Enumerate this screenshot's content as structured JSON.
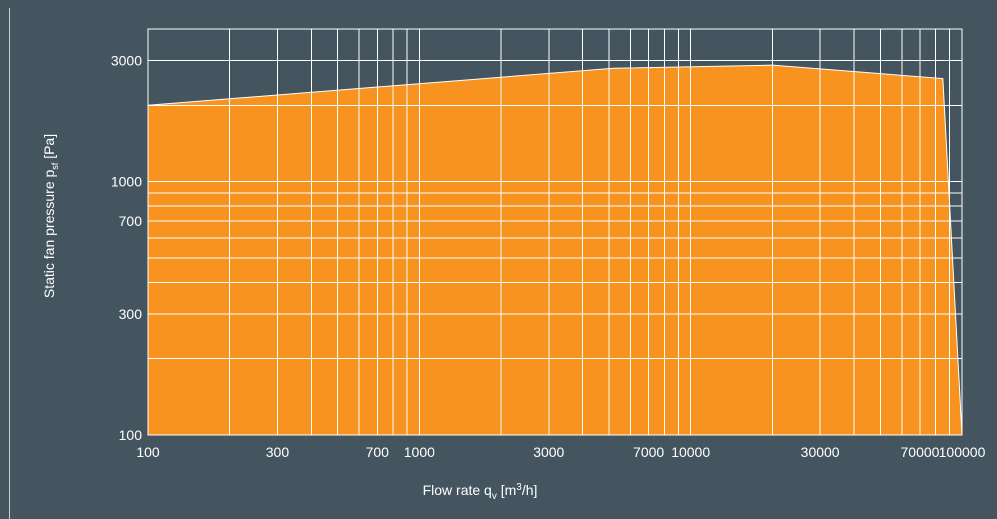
{
  "chart_data": {
    "type": "area",
    "title": "",
    "xlabel": {
      "main": "Flow rate q",
      "sub": "v",
      "unit_pre": " [m",
      "sup": "3",
      "unit_post": "/h]"
    },
    "ylabel": {
      "main": "Static fan pressure p",
      "sub": "sf",
      "unit": "  [Pa]"
    },
    "x_scale": "log",
    "y_scale": "log",
    "xlim": [
      100,
      100000
    ],
    "ylim": [
      100,
      4000
    ],
    "x_ticks": [
      {
        "value": 100,
        "label": "100"
      },
      {
        "value": 300,
        "label": "300"
      },
      {
        "value": 700,
        "label": "700"
      },
      {
        "value": 1000,
        "label": "1000"
      },
      {
        "value": 3000,
        "label": "3000"
      },
      {
        "value": 7000,
        "label": "7000"
      },
      {
        "value": 10000,
        "label": "10000"
      },
      {
        "value": 30000,
        "label": "30000"
      },
      {
        "value": 70000,
        "label": "70000"
      },
      {
        "value": 100000,
        "label": "100000"
      }
    ],
    "y_ticks": [
      {
        "value": 100,
        "label": "100"
      },
      {
        "value": 300,
        "label": "300"
      },
      {
        "value": 700,
        "label": "700"
      },
      {
        "value": 1000,
        "label": "1000"
      },
      {
        "value": 3000,
        "label": "3000"
      }
    ],
    "x_grid": [
      100,
      200,
      300,
      400,
      500,
      600,
      700,
      800,
      900,
      1000,
      2000,
      3000,
      4000,
      5000,
      6000,
      7000,
      8000,
      9000,
      10000,
      20000,
      30000,
      40000,
      50000,
      60000,
      70000,
      80000,
      90000
    ],
    "y_grid": [
      100,
      200,
      300,
      400,
      500,
      600,
      700,
      800,
      900,
      1000,
      2000,
      3000
    ],
    "grid": true,
    "series": [
      {
        "name": "",
        "x": [
          100,
          5200,
          20000,
          85000,
          100000
        ],
        "y": [
          2000,
          2800,
          2880,
          2550,
          100
        ]
      }
    ],
    "colors": {
      "background": "#455560",
      "fill": "#f7931e",
      "grid": "#ffffff",
      "text": "#ffffff"
    }
  }
}
